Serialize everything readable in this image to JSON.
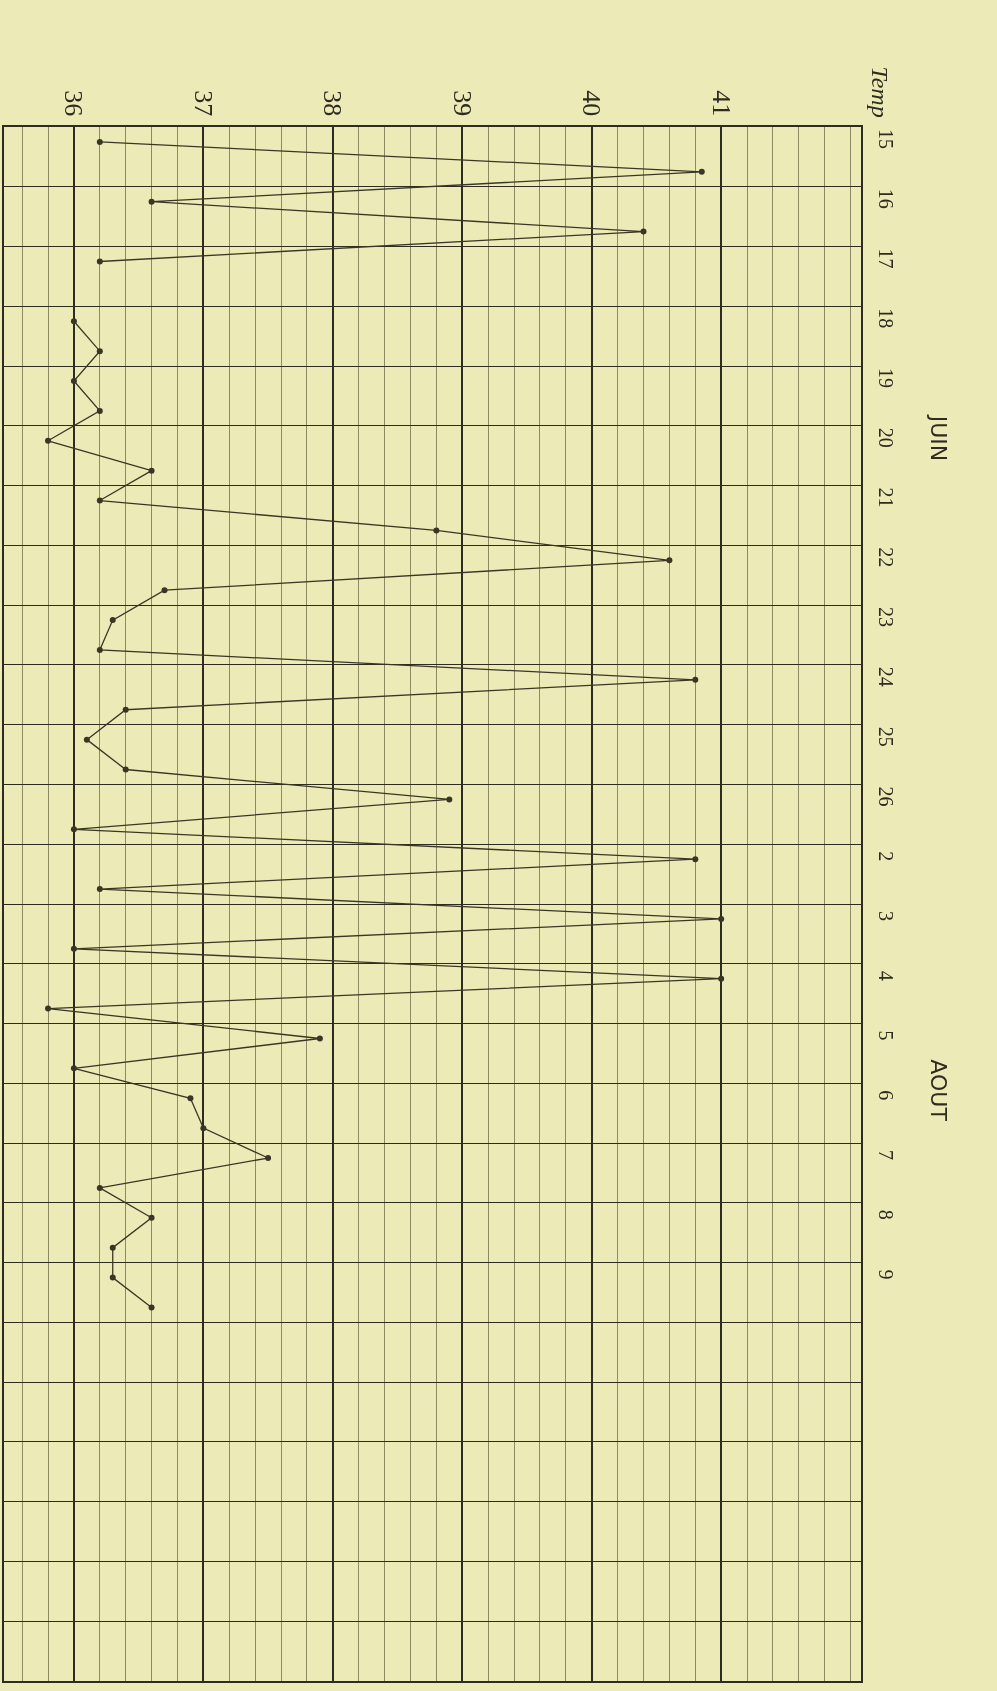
{
  "chart_data": {
    "type": "line",
    "ylabel": "Temp",
    "orientation": "horizontal",
    "categories": [
      "15",
      null,
      "16",
      null,
      "17",
      null,
      "18",
      null,
      "19",
      null,
      "20",
      null,
      "21",
      null,
      "22",
      null,
      "23",
      null,
      "24",
      null,
      "25",
      null,
      "26",
      null,
      "2",
      null,
      "3",
      null,
      "4",
      null,
      "5",
      null,
      "6",
      null,
      "7",
      null,
      "8",
      null,
      "9",
      null,
      null,
      null,
      null,
      null,
      null,
      null,
      null,
      null,
      null,
      null,
      null,
      null
    ],
    "series": [
      {
        "color": "#3a3626",
        "values": [
          36.2,
          40.85,
          36.6,
          40.4,
          36.2,
          null,
          36.0,
          36.2,
          36.0,
          36.2,
          35.8,
          36.6,
          36.2,
          38.8,
          40.6,
          36.7,
          36.3,
          36.2,
          40.8,
          36.4,
          36.1,
          36.4,
          38.9,
          36.0,
          40.8,
          36.2,
          41.0,
          36.0,
          41.0,
          35.8,
          37.9,
          36.0,
          36.9,
          37.0,
          37.5,
          36.2,
          36.6,
          36.3,
          36.3,
          36.6,
          null,
          null,
          null,
          null,
          null,
          null,
          null,
          null,
          null,
          null,
          null,
          null
        ]
      }
    ],
    "xlim": [
      35.46,
      42.08
    ],
    "xticks": [
      {
        "value": 35.6,
        "label": null
      },
      {
        "value": 35.8,
        "label": null
      },
      36,
      {
        "value": 36.2,
        "label": null
      },
      {
        "value": 36.4,
        "label": null
      },
      {
        "value": 36.6,
        "label": null
      },
      {
        "value": 36.8,
        "label": null
      },
      37,
      {
        "value": 37.2,
        "label": null
      },
      {
        "value": 37.4,
        "label": null
      },
      {
        "value": 37.6,
        "label": null
      },
      {
        "value": 37.8,
        "label": null
      },
      38,
      {
        "value": 38.2,
        "label": null
      },
      {
        "value": 38.4,
        "label": null
      },
      {
        "value": 38.6,
        "label": null
      },
      {
        "value": 38.8,
        "label": null
      },
      39,
      {
        "value": 39.2,
        "label": null
      },
      {
        "value": 39.4,
        "label": null
      },
      {
        "value": 39.6,
        "label": null
      },
      {
        "value": 39.8,
        "label": null
      },
      40,
      {
        "value": 40.2,
        "label": null
      },
      {
        "value": 40.4,
        "label": null
      },
      {
        "value": 40.6,
        "label": null
      },
      {
        "value": 40.8,
        "label": null
      },
      41,
      {
        "value": 41.2,
        "label": null
      },
      {
        "value": 41.4,
        "label": null
      },
      {
        "value": 41.6,
        "label": null
      },
      {
        "value": 41.8,
        "label": null
      },
      {
        "value": 42.0,
        "label": null
      }
    ],
    "annotations": [
      "JUIN",
      "AOUT"
    ],
    "grid": true,
    "marker": "circle",
    "line_style": "solid"
  }
}
